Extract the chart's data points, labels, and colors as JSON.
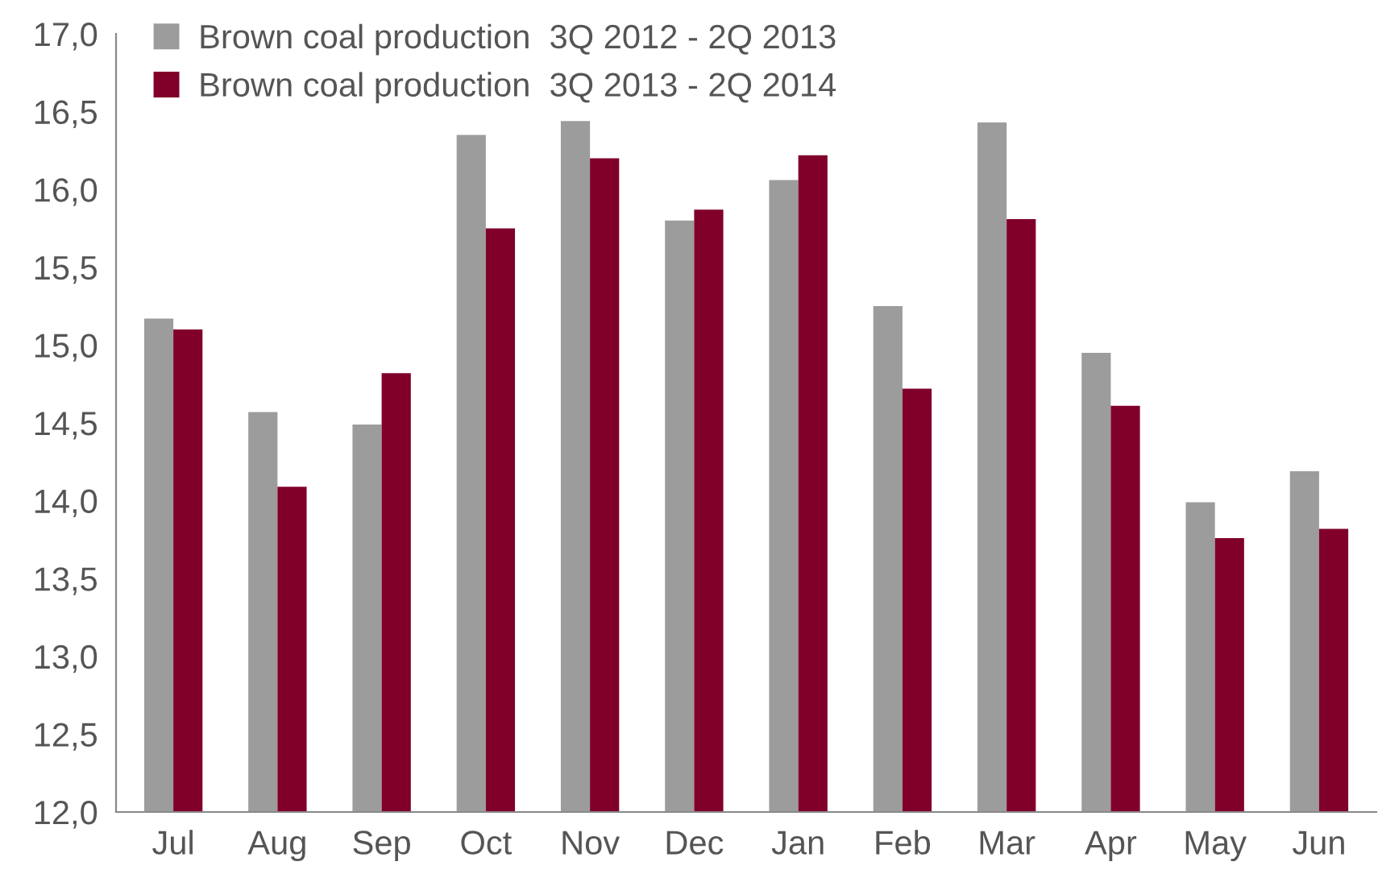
{
  "chart_data": {
    "type": "bar",
    "categories": [
      "Jul",
      "Aug",
      "Sep",
      "Oct",
      "Nov",
      "Dec",
      "Jan",
      "Feb",
      "Mar",
      "Apr",
      "May",
      "Jun"
    ],
    "series": [
      {
        "name": "Brown coal production  3Q 2012 - 2Q 2013",
        "color": "#9c9c9c",
        "values": [
          15.17,
          14.57,
          14.49,
          16.35,
          16.44,
          15.8,
          16.06,
          15.25,
          16.43,
          14.95,
          13.99,
          14.19
        ]
      },
      {
        "name": "Brown coal production  3Q 2013 - 2Q 2014",
        "color": "#80002a",
        "values": [
          15.1,
          14.09,
          14.82,
          15.75,
          16.2,
          15.87,
          16.22,
          14.72,
          15.81,
          14.61,
          13.76,
          13.82
        ]
      }
    ],
    "ylim": [
      12,
      17
    ],
    "yticks": [
      {
        "value": 12,
        "label": "12,0"
      },
      {
        "value": 12.5,
        "label": "12,5"
      },
      {
        "value": 13,
        "label": "13,0"
      },
      {
        "value": 13.5,
        "label": "13,5"
      },
      {
        "value": 14,
        "label": "14,0"
      },
      {
        "value": 14.5,
        "label": "14,5"
      },
      {
        "value": 15,
        "label": "15,0"
      },
      {
        "value": 15.5,
        "label": "15,5"
      },
      {
        "value": 16,
        "label": "16,0"
      },
      {
        "value": 16.5,
        "label": "16,5"
      },
      {
        "value": 17,
        "label": "17,0"
      }
    ],
    "grid": false,
    "legend": "top left"
  }
}
